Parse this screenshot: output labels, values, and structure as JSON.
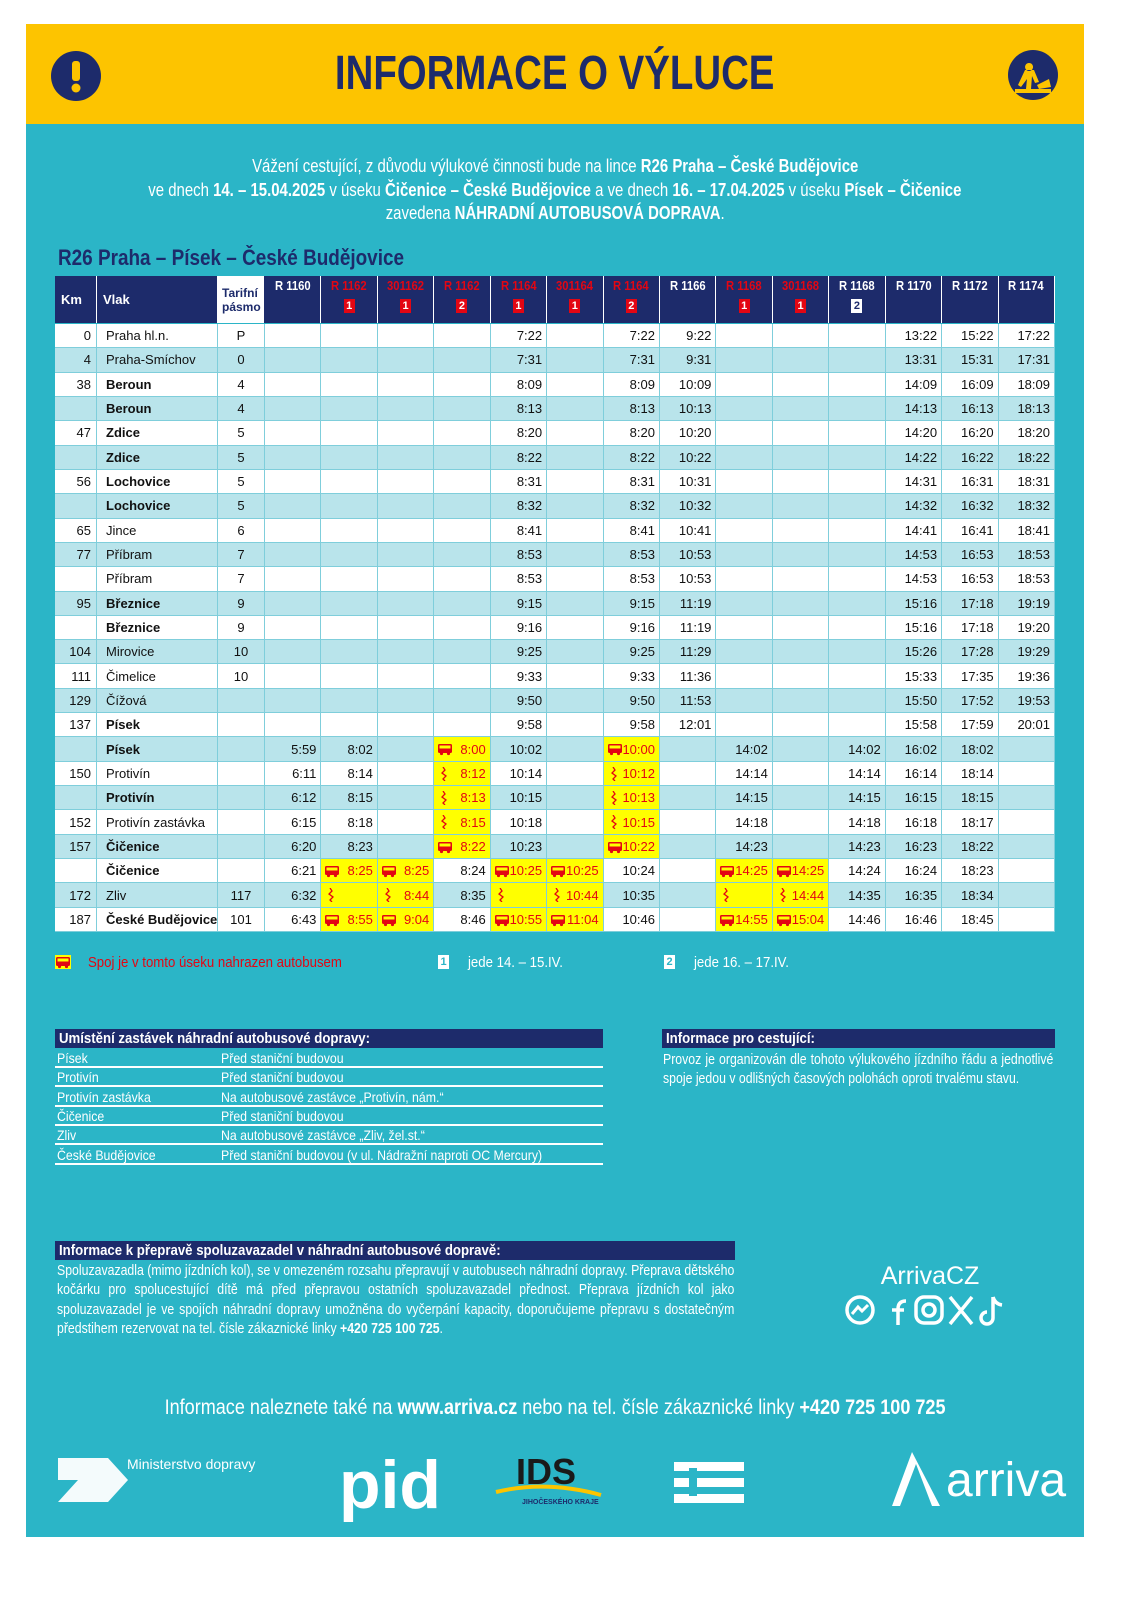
{
  "header": {
    "title": "INFORMACE O VÝLUCE"
  },
  "intro": {
    "lines": [
      [
        "Vážení cestující, z důvodu výlukové činnosti bude na lince ",
        "R26 Praha – České Budějovice"
      ],
      [
        "ve dnech ",
        "14. – 15.04.2025",
        " v úseku ",
        "Čičenice – České Budějovice",
        " a ve dnech ",
        "16. – 17.04.2025",
        " v úseku ",
        "Písek – Čičenice"
      ],
      [
        "zavedena ",
        "NÁHRADNÍ AUTOBUSOVÁ DOPRAVA",
        "."
      ]
    ]
  },
  "timetable": {
    "title": "R26 Praha – Písek – České Budějovice",
    "headers": {
      "km": "Km",
      "station": "Vlak",
      "zone": "Tarifní pásmo"
    },
    "trains": [
      {
        "name": "R 1160",
        "color": "#ffffff"
      },
      {
        "name": "R 1162",
        "color": "#e30613",
        "badge": 1
      },
      {
        "name": "301162",
        "color": "#e30613",
        "badge": 1
      },
      {
        "name": "R 1162",
        "color": "#e30613",
        "badge": 2
      },
      {
        "name": "R 1164",
        "color": "#e30613",
        "badge": 1
      },
      {
        "name": "301164",
        "color": "#e30613",
        "badge": 1
      },
      {
        "name": "R 1164",
        "color": "#e30613",
        "badge": 2
      },
      {
        "name": "R 1166",
        "color": "#ffffff"
      },
      {
        "name": "R 1168",
        "color": "#e30613",
        "badge": 1
      },
      {
        "name": "301168",
        "color": "#e30613",
        "badge": 1
      },
      {
        "name": "R 1168",
        "color": "#ffffff",
        "badge": 2
      },
      {
        "name": "R 1170",
        "color": "#ffffff"
      },
      {
        "name": "R 1172",
        "color": "#ffffff"
      },
      {
        "name": "R 1174",
        "color": "#ffffff"
      }
    ],
    "rows": [
      {
        "km": 0,
        "station": "Praha hl.n.",
        "zone": "P",
        "bold": false,
        "times": [
          null,
          null,
          null,
          null,
          "7:22",
          null,
          "7:22",
          "9:22",
          null,
          null,
          null,
          "13:22",
          "15:22",
          "17:22"
        ]
      },
      {
        "km": 4,
        "station": "Praha-Smíchov",
        "zone": 0,
        "bold": false,
        "times": [
          null,
          null,
          null,
          null,
          "7:31",
          null,
          "7:31",
          "9:31",
          null,
          null,
          null,
          "13:31",
          "15:31",
          "17:31"
        ]
      },
      {
        "km": 38,
        "station": "Beroun",
        "zone": 4,
        "bold": true,
        "times": [
          null,
          null,
          null,
          null,
          "8:09",
          null,
          "8:09",
          "10:09",
          null,
          null,
          null,
          "14:09",
          "16:09",
          "18:09"
        ]
      },
      {
        "km": null,
        "station": "Beroun",
        "zone": 4,
        "bold": true,
        "times": [
          null,
          null,
          null,
          null,
          "8:13",
          null,
          "8:13",
          "10:13",
          null,
          null,
          null,
          "14:13",
          "16:13",
          "18:13"
        ]
      },
      {
        "km": 47,
        "station": "Zdice",
        "zone": 5,
        "bold": true,
        "times": [
          null,
          null,
          null,
          null,
          "8:20",
          null,
          "8:20",
          "10:20",
          null,
          null,
          null,
          "14:20",
          "16:20",
          "18:20"
        ]
      },
      {
        "km": null,
        "station": "Zdice",
        "zone": 5,
        "bold": true,
        "times": [
          null,
          null,
          null,
          null,
          "8:22",
          null,
          "8:22",
          "10:22",
          null,
          null,
          null,
          "14:22",
          "16:22",
          "18:22"
        ]
      },
      {
        "km": 56,
        "station": "Lochovice",
        "zone": 5,
        "bold": true,
        "times": [
          null,
          null,
          null,
          null,
          "8:31",
          null,
          "8:31",
          "10:31",
          null,
          null,
          null,
          "14:31",
          "16:31",
          "18:31"
        ]
      },
      {
        "km": null,
        "station": "Lochovice",
        "zone": 5,
        "bold": true,
        "times": [
          null,
          null,
          null,
          null,
          "8:32",
          null,
          "8:32",
          "10:32",
          null,
          null,
          null,
          "14:32",
          "16:32",
          "18:32"
        ]
      },
      {
        "km": 65,
        "station": "Jince",
        "zone": 6,
        "bold": false,
        "times": [
          null,
          null,
          null,
          null,
          "8:41",
          null,
          "8:41",
          "10:41",
          null,
          null,
          null,
          "14:41",
          "16:41",
          "18:41"
        ]
      },
      {
        "km": 77,
        "station": "Příbram",
        "zone": 7,
        "bold": false,
        "times": [
          null,
          null,
          null,
          null,
          "8:53",
          null,
          "8:53",
          "10:53",
          null,
          null,
          null,
          "14:53",
          "16:53",
          "18:53"
        ]
      },
      {
        "km": null,
        "station": "Příbram",
        "zone": 7,
        "bold": false,
        "times": [
          null,
          null,
          null,
          null,
          "8:53",
          null,
          "8:53",
          "10:53",
          null,
          null,
          null,
          "14:53",
          "16:53",
          "18:53"
        ]
      },
      {
        "km": 95,
        "station": "Březnice",
        "zone": 9,
        "bold": true,
        "times": [
          null,
          null,
          null,
          null,
          "9:15",
          null,
          "9:15",
          "11:19",
          null,
          null,
          null,
          "15:16",
          "17:18",
          "19:19"
        ]
      },
      {
        "km": null,
        "station": "Březnice",
        "zone": 9,
        "bold": true,
        "times": [
          null,
          null,
          null,
          null,
          "9:16",
          null,
          "9:16",
          "11:19",
          null,
          null,
          null,
          "15:16",
          "17:18",
          "19:20"
        ]
      },
      {
        "km": 104,
        "station": "Mirovice",
        "zone": 10,
        "bold": false,
        "times": [
          null,
          null,
          null,
          null,
          "9:25",
          null,
          "9:25",
          "11:29",
          null,
          null,
          null,
          "15:26",
          "17:28",
          "19:29"
        ]
      },
      {
        "km": 111,
        "station": "Čimelice",
        "zone": 10,
        "bold": false,
        "times": [
          null,
          null,
          null,
          null,
          "9:33",
          null,
          "9:33",
          "11:36",
          null,
          null,
          null,
          "15:33",
          "17:35",
          "19:36"
        ]
      },
      {
        "km": 129,
        "station": "Čížová",
        "zone": null,
        "bold": false,
        "times": [
          null,
          null,
          null,
          null,
          "9:50",
          null,
          "9:50",
          "11:53",
          null,
          null,
          null,
          "15:50",
          "17:52",
          "19:53"
        ]
      },
      {
        "km": 137,
        "station": "Písek",
        "zone": null,
        "bold": true,
        "times": [
          null,
          null,
          null,
          null,
          "9:58",
          null,
          "9:58",
          "12:01",
          null,
          null,
          null,
          "15:58",
          "17:59",
          "20:01"
        ]
      },
      {
        "km": null,
        "station": "Písek",
        "zone": null,
        "bold": true,
        "times": [
          "5:59",
          "8:02",
          null,
          {
            "time": "8:00",
            "bus": true
          },
          "10:02",
          null,
          {
            "time": "10:00",
            "bus": true
          },
          null,
          "14:02",
          null,
          "14:02",
          "16:02",
          "18:02",
          null
        ]
      },
      {
        "km": 150,
        "station": "Protivín",
        "zone": null,
        "bold": false,
        "times": [
          "6:11",
          "8:14",
          null,
          {
            "time": "8:12",
            "bus": true
          },
          "10:14",
          null,
          {
            "time": "10:12",
            "bus": true
          },
          null,
          "14:14",
          null,
          "14:14",
          "16:14",
          "18:14",
          null
        ]
      },
      {
        "km": null,
        "station": "Protivín",
        "zone": null,
        "bold": true,
        "times": [
          "6:12",
          "8:15",
          null,
          {
            "time": "8:13",
            "bus": true
          },
          "10:15",
          null,
          {
            "time": "10:13",
            "bus": true
          },
          null,
          "14:15",
          null,
          "14:15",
          "16:15",
          "18:15",
          null
        ]
      },
      {
        "km": 152,
        "station": "Protivín zastávka",
        "zone": null,
        "bold": false,
        "times": [
          "6:15",
          "8:18",
          null,
          {
            "time": "8:15",
            "bus": true
          },
          "10:18",
          null,
          {
            "time": "10:15",
            "bus": true
          },
          null,
          "14:18",
          null,
          "14:18",
          "16:18",
          "18:17",
          null
        ]
      },
      {
        "km": 157,
        "station": "Čičenice",
        "zone": null,
        "bold": true,
        "times": [
          "6:20",
          "8:23",
          null,
          {
            "time": "8:22",
            "bus": true
          },
          "10:23",
          null,
          {
            "time": "10:22",
            "bus": true
          },
          null,
          "14:23",
          null,
          "14:23",
          "16:23",
          "18:22",
          null
        ]
      },
      {
        "km": null,
        "station": "Čičenice",
        "zone": null,
        "bold": true,
        "times": [
          "6:21",
          {
            "time": "8:25",
            "bus": true
          },
          {
            "time": "8:25",
            "bus": true
          },
          "8:24",
          {
            "time": "10:25",
            "bus": true
          },
          {
            "time": "10:25",
            "bus": true
          },
          "10:24",
          null,
          {
            "time": "14:25",
            "bus": true
          },
          {
            "time": "14:25",
            "bus": true
          },
          "14:24",
          "16:24",
          "18:23",
          null
        ]
      },
      {
        "km": 172,
        "station": "Zliv",
        "zone": 117,
        "bold": false,
        "times": [
          "6:32",
          {
            "time": null,
            "bus": true
          },
          {
            "time": "8:44",
            "bus": true
          },
          "8:35",
          {
            "time": null,
            "bus": true
          },
          {
            "time": "10:44",
            "bus": true
          },
          "10:35",
          null,
          {
            "time": null,
            "bus": true
          },
          {
            "time": "14:44",
            "bus": true
          },
          "14:35",
          "16:35",
          "18:34",
          null
        ]
      },
      {
        "km": 187,
        "station": "České Budějovice",
        "zone": 101,
        "bold": true,
        "times": [
          "6:43",
          {
            "time": "8:55",
            "bus": true
          },
          {
            "time": "9:04",
            "bus": true
          },
          "8:46",
          {
            "time": "10:55",
            "bus": true
          },
          {
            "time": "11:04",
            "bus": true
          },
          "10:46",
          null,
          {
            "time": "14:55",
            "bus": true
          },
          {
            "time": "15:04",
            "bus": true
          },
          "14:46",
          "16:46",
          "18:45",
          null
        ]
      }
    ]
  },
  "legend": {
    "bus": "Spoj je v tomto úseku nahrazen autobusem",
    "items": [
      {
        "badge": 1,
        "text": "jede 14. – 15.IV."
      },
      {
        "badge": 2,
        "text": "jede 16. – 17.IV."
      }
    ]
  },
  "stops": {
    "title": "Umístění zastávek náhradní autobusové dopravy:",
    "rows": [
      [
        "Písek",
        "Před staniční budovou"
      ],
      [
        "Protivín",
        "Před staniční budovou"
      ],
      [
        "Protivín zastávka",
        "Na autobusové zastávce „Protivín, nám.“"
      ],
      [
        "Čičenice",
        "Před staniční budovou"
      ],
      [
        "Zliv",
        "Na autobusové zastávce „Zliv, žel.st.“"
      ],
      [
        "České Budějovice",
        "Před staniční budovou (v ul. Nádražní naproti OC Mercury)"
      ]
    ]
  },
  "info": {
    "title": "Informace pro cestující:",
    "text": "Provoz je organizován dle tohoto výlukového jízdního řádu a jednotlivé spoje jedou v odlišných časových polohách oproti trvalému stavu."
  },
  "luggage": {
    "title": "Informace k přepravě spoluzavazadel v náhradní autobusové dopravě:",
    "text": [
      "Spoluzavazadla (mimo jízdních kol), se v omezeném rozsahu přepravují v autobusech náhradní dopravy. Přeprava dětského kočárku pro spolucestující dítě má před přepravou ostatních spoluzavazadel přednost. Přeprava jízdních kol jako spoluzavazadel je ve spojích náhradní dopravy umožněna do vyčerpání kapacity, doporučujeme přepravu s dostatečným předstihem rezervovat na tel. čísle zákaznické linky ",
      "+420 725 100 725",
      "."
    ]
  },
  "social": {
    "handle": "ArrivaCZ"
  },
  "footer": {
    "text": [
      "Informace naleznete také na ",
      "www.arriva.cz",
      " nebo na tel. čísle zákaznické linky ",
      "+420 725 100 725"
    ]
  },
  "logos": {
    "ministry": "Ministerstvo dopravy",
    "pid": "pid",
    "ids": "IDS",
    "ids_region": "JIHOČESKÉHO KRAJE",
    "arriva": "arriva"
  }
}
